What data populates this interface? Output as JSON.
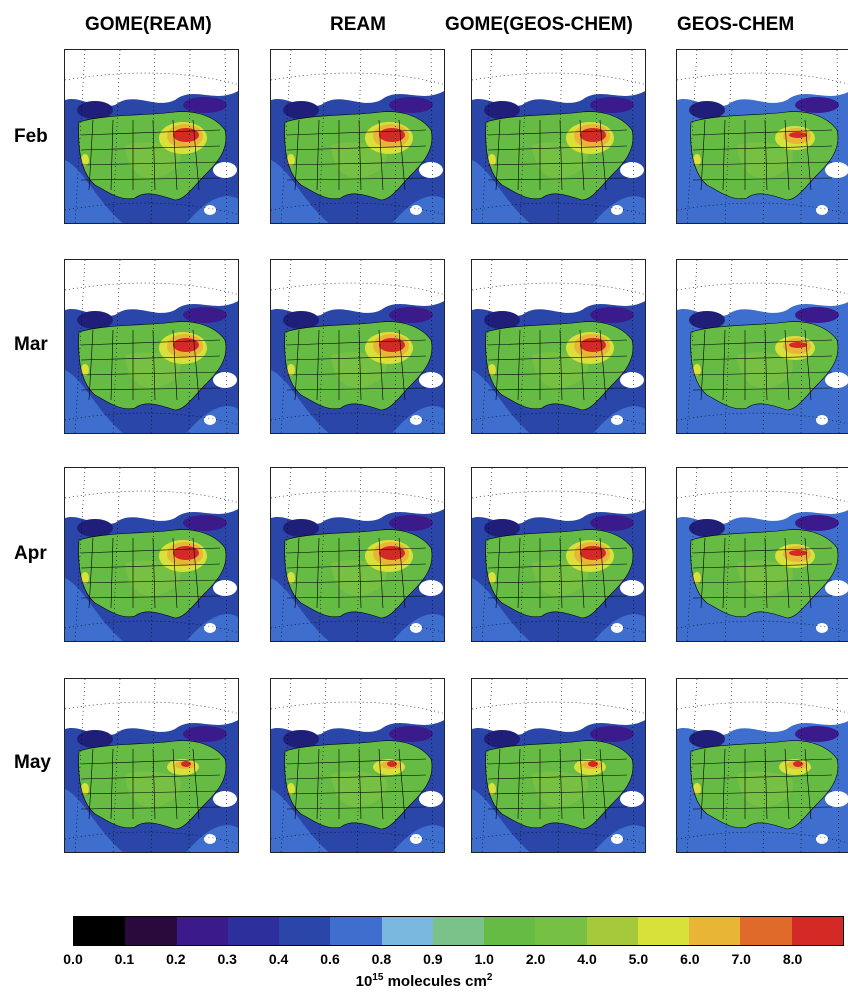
{
  "columns": [
    "GOME(REAM)",
    "REAM",
    "GOME(GEOS-CHEM)",
    "GEOS-CHEM"
  ],
  "rows": [
    "Feb",
    "Mar",
    "Apr",
    "May"
  ],
  "colorbar": {
    "colors": [
      "#000000",
      "#2a0a3c",
      "#3b1a8c",
      "#2d2f9c",
      "#2a46a8",
      "#3e6fcf",
      "#7ab8df",
      "#7ac28a",
      "#66bb45",
      "#76c043",
      "#a5c93a",
      "#d8e03a",
      "#e9b537",
      "#df6a2a",
      "#d32a26"
    ],
    "tick_labels": [
      "0.0",
      "0.1",
      "0.2",
      "0.3",
      "0.4",
      "0.6",
      "0.8",
      "0.9",
      "1.0",
      "2.0",
      "4.0",
      "5.0",
      "6.0",
      "7.0",
      "8.0"
    ],
    "units_base": "10",
    "units_exp": "15",
    "units_text": " molecules cm",
    "units_exp2": "2"
  }
}
